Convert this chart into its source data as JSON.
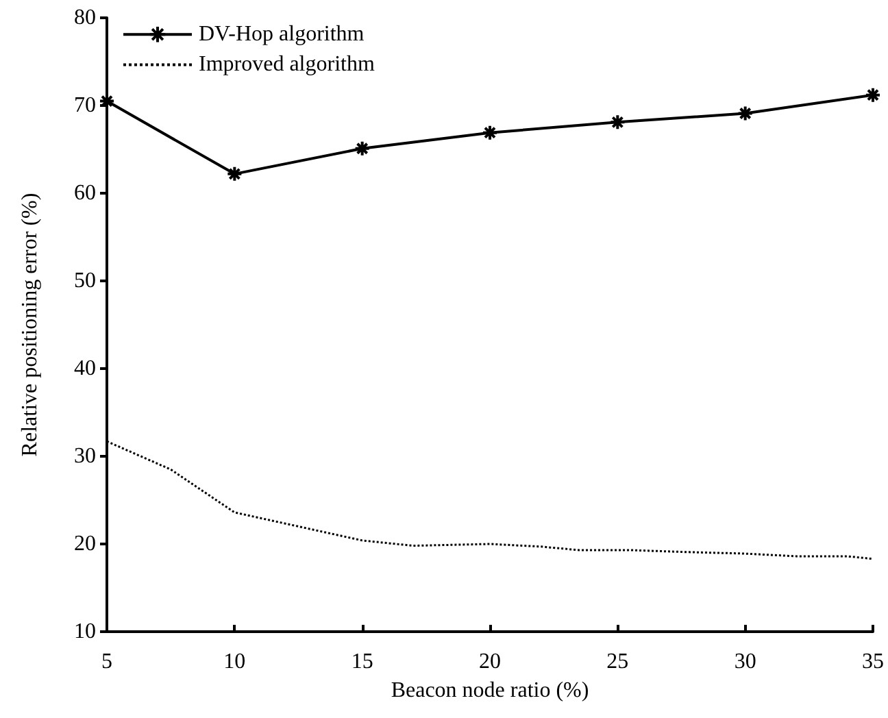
{
  "chart_data": {
    "type": "line",
    "xlabel": "Beacon node ratio (%)",
    "ylabel": "Relative positioning error (%)",
    "xlim": [
      5,
      35
    ],
    "xticks": [
      5,
      10,
      15,
      20,
      25,
      30,
      35
    ],
    "ylim": [
      10,
      80
    ],
    "yticks": [
      10,
      20,
      30,
      40,
      50,
      60,
      70,
      80
    ],
    "grid": false,
    "legend": "top left",
    "series": [
      {
        "name": "DV-Hop algorithm",
        "color": "#000000",
        "marker": "cross",
        "line_style": "solid",
        "x": [
          5,
          10,
          15,
          20,
          25,
          30,
          35
        ],
        "values": [
          70.5,
          62.2,
          65.1,
          66.9,
          68.1,
          69.1,
          71.2
        ]
      },
      {
        "name": "Improved algorithm",
        "color": "#000000",
        "marker": "none",
        "line_style": "dotted",
        "x": [
          5,
          7.5,
          10,
          12.5,
          15,
          17,
          20,
          22,
          23.5,
          25.5,
          27.5,
          30,
          32,
          34,
          35
        ],
        "values": [
          31.7,
          28.5,
          23.6,
          22.0,
          20.4,
          19.8,
          20.0,
          19.7,
          19.3,
          19.3,
          19.1,
          18.9,
          18.6,
          18.6,
          18.3
        ]
      }
    ]
  }
}
